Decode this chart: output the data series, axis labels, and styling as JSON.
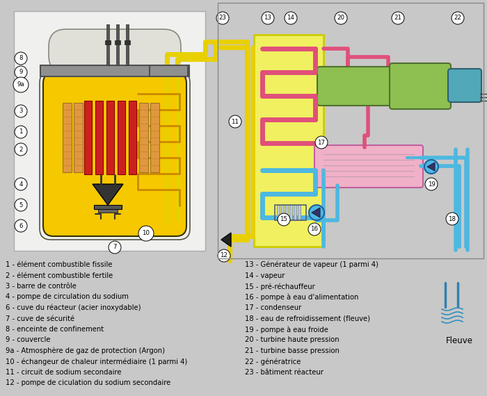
{
  "bg_color": "#c8c8c8",
  "sodium_color": "#f5c800",
  "sodium2_color": "#e8d000",
  "steam_color": "#e0507a",
  "water_color": "#4db8e0",
  "turbine_green": "#8dc050",
  "generator_teal": "#50a8b8",
  "condenser_pink": "#f0b0c8",
  "concrete_color": "#b8b0a8",
  "lid_color": "#909090",
  "argon_color": "#dcdcdc",
  "left_labels": [
    "1 - élément combustible fissile",
    "2 - élément combustible fertile",
    "3 - barre de contrôle",
    "4 - pompe de circulation du sodium",
    "6 - cuve du réacteur (acier inoxydable)",
    "7 - cuve de sécurité",
    "8 - enceinte de confinement",
    "9 - couvercle",
    "9a - Atmosphère de gaz de protection (Argon)",
    "10 - échangeur de chaleur intermédiaire (1 parmi 4)",
    "11 - circuit de sodium secondaire",
    "12 - pompe de ciculation du sodium secondaire"
  ],
  "right_labels": [
    "13 - Générateur de vapeur (1 parmi 4)",
    "14 - vapeur",
    "15 - pré-réchauffeur",
    "16 - pompe à eau d'alimentation",
    "17 - condenseur",
    "18 - eau de refroidissement (fleuve)",
    "19 - pompe à eau froide",
    "20 - turbine haute pression",
    "21 - turbine basse pression",
    "22 - génératrice",
    "23 - bâtiment réacteur"
  ],
  "fleuve_label": "Fleuve"
}
